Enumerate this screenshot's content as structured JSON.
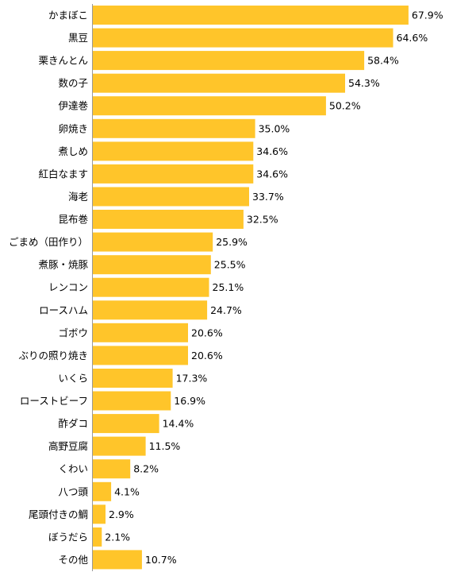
{
  "chart_data": {
    "type": "bar",
    "orientation": "horizontal",
    "title": "",
    "xlabel": "",
    "ylabel": "",
    "categories": [
      "かまぼこ",
      "黒豆",
      "栗きんとん",
      "数の子",
      "伊達巻",
      "卵焼き",
      "煮しめ",
      "紅白なます",
      "海老",
      "昆布巻",
      "ごまめ（田作り）",
      "煮豚・焼豚",
      "レンコン",
      "ロースハム",
      "ゴボウ",
      "ぶりの照り焼き",
      "いくら",
      "ローストビーフ",
      "酢ダコ",
      "高野豆腐",
      "くわい",
      "八つ頭",
      "尾頭付きの鯛",
      "ぼうだら",
      "その他"
    ],
    "values": [
      67.9,
      64.6,
      58.4,
      54.3,
      50.2,
      35.0,
      34.6,
      34.6,
      33.7,
      32.5,
      25.9,
      25.5,
      25.1,
      24.7,
      20.6,
      20.6,
      17.3,
      16.9,
      14.4,
      11.5,
      8.2,
      4.1,
      2.9,
      2.1,
      10.7
    ],
    "value_labels": [
      "67.9%",
      "64.6%",
      "58.4%",
      "54.3%",
      "50.2%",
      "35.0%",
      "34.6%",
      "34.6%",
      "33.7%",
      "32.5%",
      "25.9%",
      "25.5%",
      "25.1%",
      "24.7%",
      "20.6%",
      "20.6%",
      "17.3%",
      "16.9%",
      "14.4%",
      "11.5%",
      "8.2%",
      "4.1%",
      "2.9%",
      "2.1%",
      "10.7%"
    ],
    "xlim": [
      0,
      100
    ],
    "grid": false,
    "bar_color": "#FFC52A",
    "axis_color": "#999999"
  }
}
